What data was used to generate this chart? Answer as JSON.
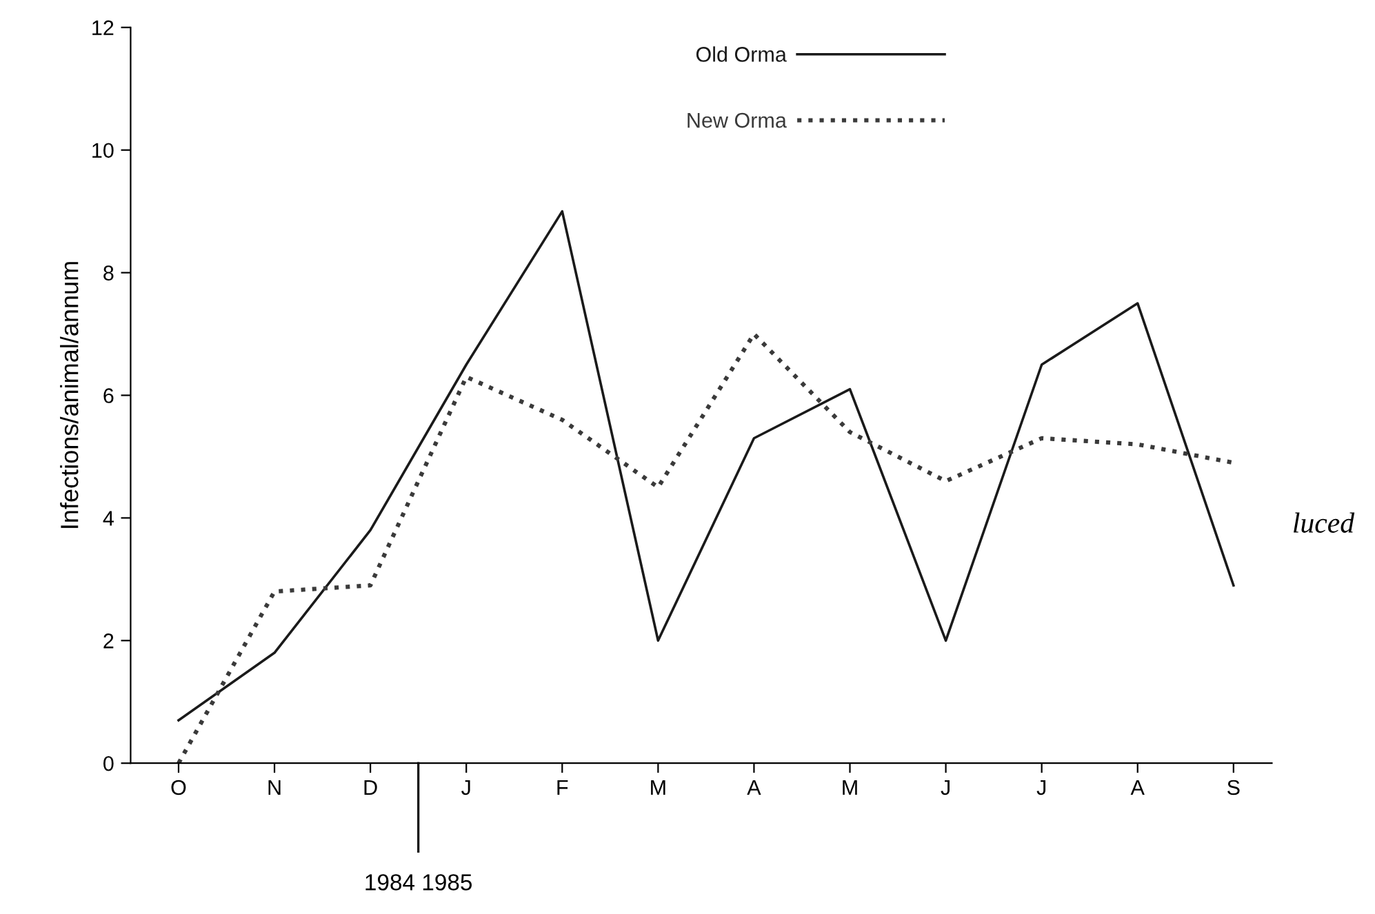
{
  "chart_data": {
    "type": "line",
    "ylabel": "Infections/animal/annum",
    "categories": [
      "O",
      "N",
      "D",
      "J",
      "F",
      "M",
      "A",
      "M",
      "J",
      "J",
      "A",
      "S"
    ],
    "series": [
      {
        "name": "Old Orma",
        "color": "#1a1a1a",
        "line_style": "solid",
        "values": [
          0.7,
          1.8,
          3.8,
          6.5,
          9.0,
          2.0,
          5.3,
          6.1,
          2.0,
          6.5,
          7.5,
          2.9
        ]
      },
      {
        "name": "New Orma",
        "color": "#3a3a3a",
        "line_style": "dotted",
        "values": [
          0.0,
          2.8,
          2.9,
          6.3,
          5.6,
          4.5,
          7.0,
          5.4,
          4.6,
          5.3,
          5.2,
          4.9
        ]
      }
    ],
    "ylim": [
      0,
      12
    ],
    "yticks": [
      0,
      2,
      4,
      6,
      8,
      10,
      12
    ],
    "grid": false,
    "legend": "top",
    "marker": "none",
    "annotations": [
      "1984 1985",
      "luced"
    ]
  }
}
